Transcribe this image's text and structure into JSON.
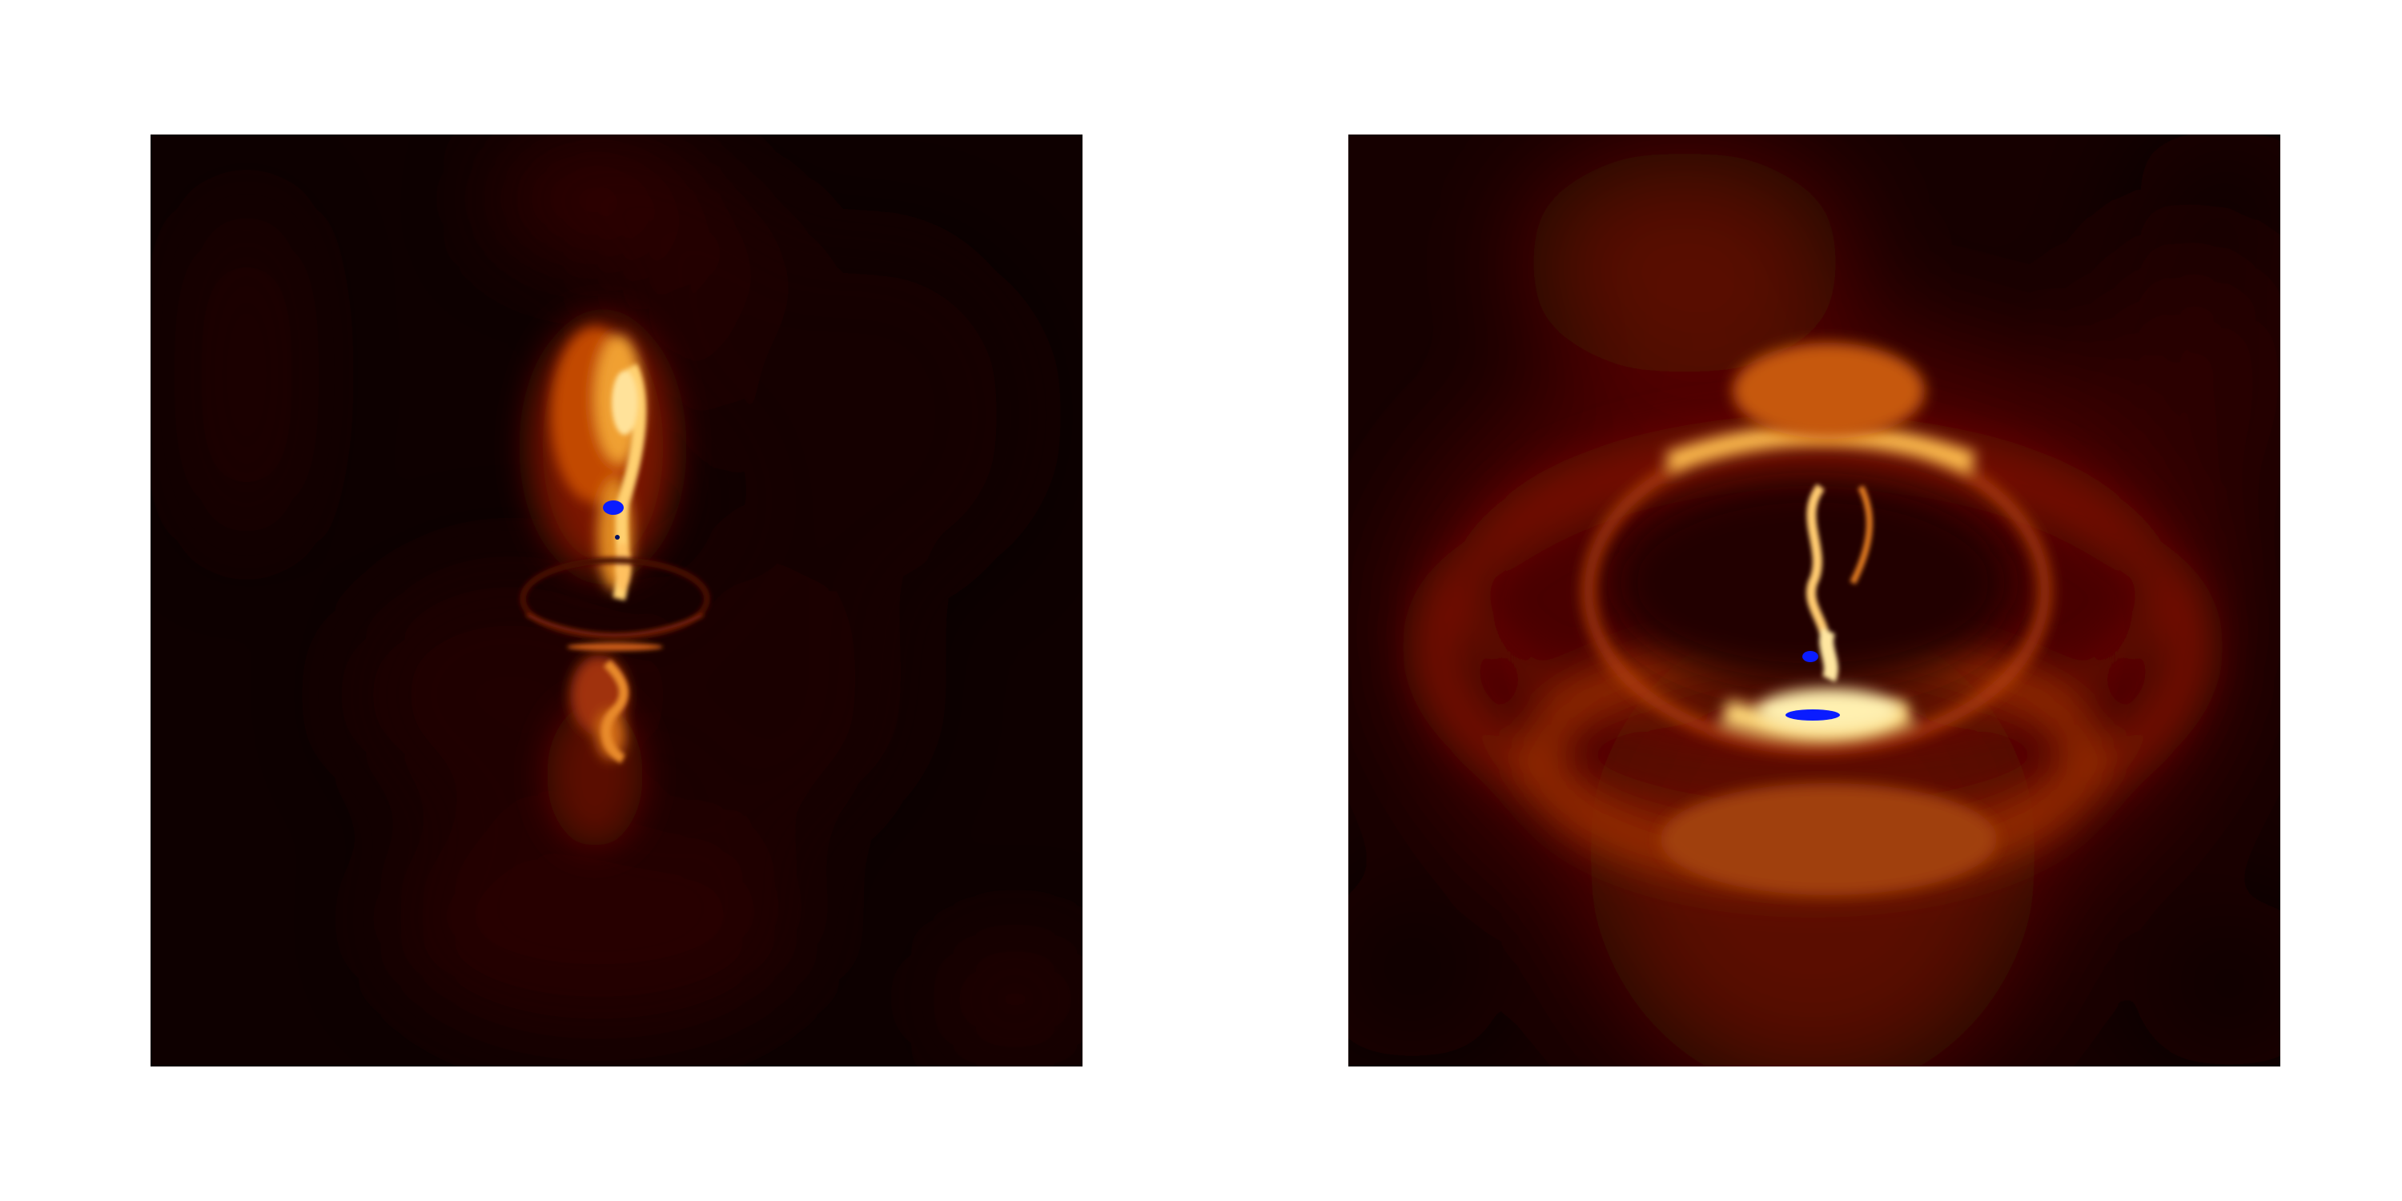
{
  "figure": {
    "panels": [
      {
        "id": "left",
        "subject": "vertical-jet-with-central-disk"
      },
      {
        "id": "right",
        "subject": "ring-shaped-shell-with-bright-rim"
      }
    ],
    "colormap": {
      "low": "#000000",
      "mid_low": "#3a0000",
      "mid": "#8a1a00",
      "mid_high": "#e07a14",
      "high": "#fff3c0",
      "saturated": "#0022ff"
    }
  }
}
